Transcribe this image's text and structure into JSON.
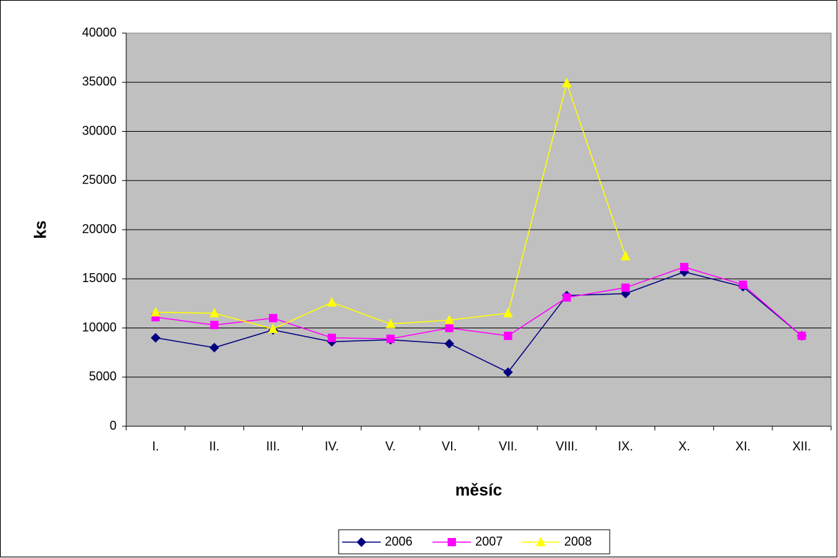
{
  "chart_data": {
    "type": "line",
    "x_label": "měsíc",
    "y_label": "ks",
    "categories": [
      "I.",
      "II.",
      "III.",
      "IV.",
      "V.",
      "VI.",
      "VII.",
      "VIII.",
      "IX.",
      "X.",
      "XI.",
      "XII."
    ],
    "series": [
      {
        "name": "2006",
        "color": "#000080",
        "marker": "diamond",
        "values": [
          9000,
          8000,
          9800,
          8600,
          8800,
          8400,
          5500,
          13300,
          13500,
          15700,
          14200,
          9200
        ]
      },
      {
        "name": "2007",
        "color": "#ff00ff",
        "marker": "square",
        "values": [
          11100,
          10300,
          11000,
          9000,
          8900,
          10000,
          9200,
          13100,
          14100,
          16200,
          14400,
          9200
        ]
      },
      {
        "name": "2008",
        "color": "#ffff00",
        "marker": "triangle",
        "values": [
          11600,
          11500,
          9900,
          12600,
          10400,
          10800,
          11500,
          34900,
          17300,
          null,
          null,
          null
        ]
      }
    ],
    "ylim": [
      0,
      40000
    ],
    "yticks": [
      0,
      5000,
      10000,
      15000,
      20000,
      25000,
      30000,
      35000,
      40000
    ],
    "grid": true,
    "legend": "bottom"
  }
}
